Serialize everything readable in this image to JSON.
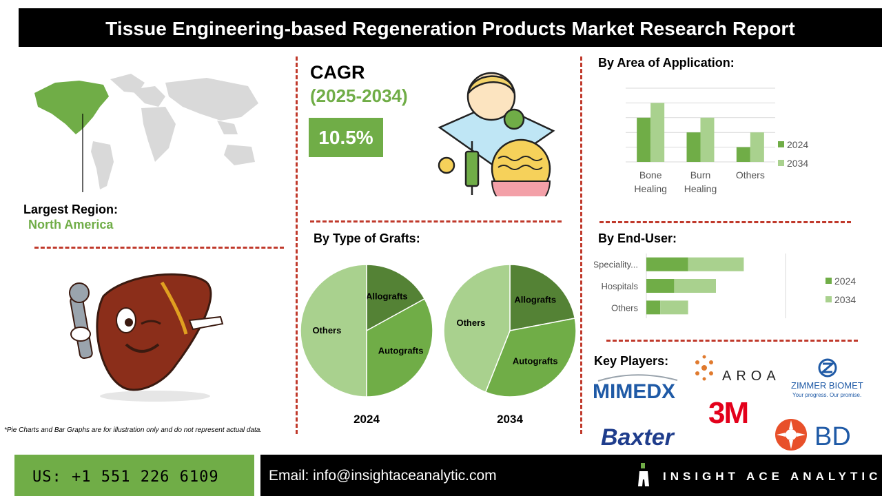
{
  "header": {
    "title": "Tissue Engineering-based Regeneration Products Market Research Report"
  },
  "region": {
    "label": "Largest Region:",
    "value": "North America"
  },
  "cagr": {
    "label": "CAGR",
    "period": "(2025-2034)",
    "value": "10.5%"
  },
  "colors": {
    "accent_green": "#70ad47",
    "dark_green": "#548235",
    "light_green": "#a9d18e",
    "dash_red": "#c0392b",
    "black": "#000000"
  },
  "icons": {
    "map": "world-map-icon",
    "mascot": "liver-mascot-icon",
    "cagr": "doctor-skin-injection-icon"
  },
  "grafts": {
    "title": "By Type of Grafts:"
  },
  "application": {
    "title": "By Area of Application:"
  },
  "end_user": {
    "title": "By End-User:"
  },
  "chart_data": [
    {
      "type": "pie",
      "title": "",
      "caption": "2024",
      "slices": [
        {
          "label": "Allografts",
          "value": 17
        },
        {
          "label": "Autografts",
          "value": 33
        },
        {
          "label": "Others",
          "value": 50
        }
      ]
    },
    {
      "type": "pie",
      "title": "",
      "caption": "2034",
      "slices": [
        {
          "label": "Allografts",
          "value": 22
        },
        {
          "label": "Autografts",
          "value": 34
        },
        {
          "label": "Others",
          "value": 44
        }
      ]
    },
    {
      "type": "bar",
      "title": "",
      "categories": [
        "Bone Healing",
        "Burn Healing",
        "Others"
      ],
      "series": [
        {
          "name": "2024",
          "values": [
            3,
            2,
            1
          ]
        },
        {
          "name": "2034",
          "values": [
            4,
            3,
            2
          ]
        }
      ],
      "ylim": [
        0,
        5
      ],
      "grid": true,
      "legend": "right"
    },
    {
      "type": "bar",
      "orientation": "horizontal",
      "stacked": true,
      "title": "",
      "categories": [
        "Speciality...",
        "Hospitals",
        "Others"
      ],
      "series": [
        {
          "name": "2024",
          "values": [
            3,
            2,
            1
          ]
        },
        {
          "name": "2034",
          "values": [
            4,
            3,
            2
          ]
        }
      ],
      "xlim": [
        0,
        10
      ],
      "legend": "right"
    }
  ],
  "key_players": {
    "title": "Key Players:",
    "logos": [
      "MIMEDX",
      "AROA",
      "ZIMMER BIOMET",
      "Your progress. Our promise.",
      "3M",
      "Baxter",
      "BD"
    ]
  },
  "footnote": "*Pie Charts and Bar Graphs are for illustration only and do not represent actual data.",
  "footer": {
    "phone": "US: +1 551 226 6109",
    "email": "Email: info@insightaceanalytic.com",
    "brand": "INSIGHT ACE ANALYTIC"
  }
}
